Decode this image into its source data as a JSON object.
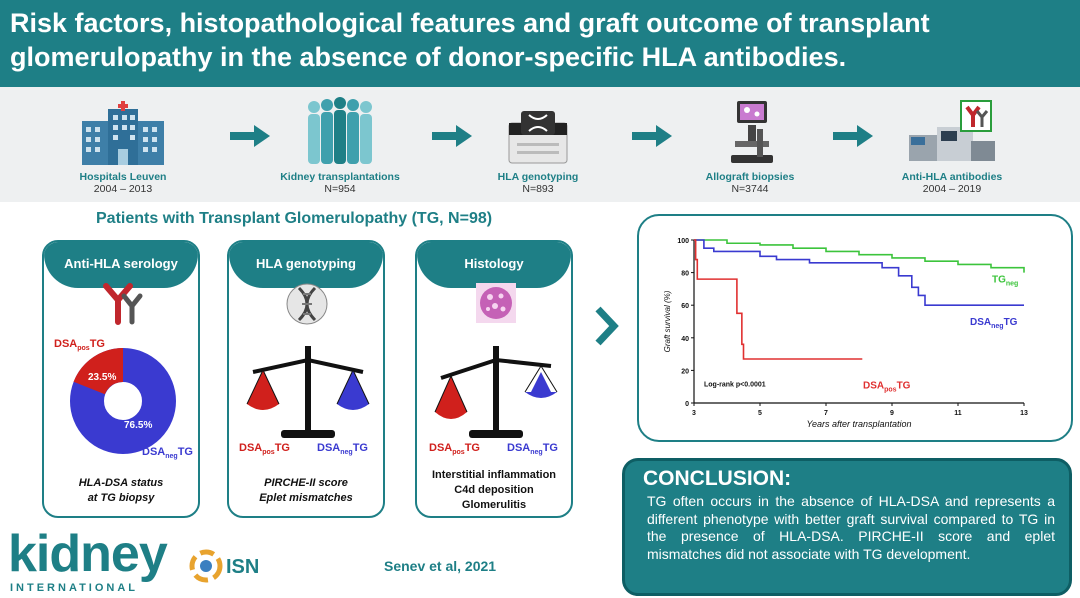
{
  "header": {
    "title": "Risk factors, histopathological features and graft outcome of transplant glomerulopathy in the absence of donor-specific HLA antibodies."
  },
  "workflow": [
    {
      "label": "Hospitals Leuven",
      "sub": "2004 – 2013",
      "icon": "hospital-icon"
    },
    {
      "label": "Kidney transplantations",
      "sub": "N=954",
      "icon": "people-icon"
    },
    {
      "label": "HLA genotyping",
      "sub": "N=893",
      "icon": "sequencer-icon"
    },
    {
      "label": "Allograft biopsies",
      "sub": "N=3744",
      "icon": "microscope-icon"
    },
    {
      "label": "Anti-HLA antibodies",
      "sub": "2004 – 2019",
      "icon": "analyzer-icon"
    }
  ],
  "section_title": "Patients with Transplant Glomerulopathy (TG, N=98)",
  "cards": {
    "serology": {
      "title": "Anti-HLA serology",
      "pos_pct": "23.5%",
      "neg_pct": "76.5%",
      "footer1": "HLA-DSA status",
      "footer2": "at TG biopsy"
    },
    "genotyping": {
      "title": "HLA genotyping",
      "footer1": "PIRCHE-II score",
      "footer2": "Eplet mismatches"
    },
    "histology": {
      "title": "Histology",
      "footer1": "Interstitial inflammation",
      "footer2": "C4d deposition",
      "footer3": "Glomerulitis"
    }
  },
  "labels": {
    "dsa": "DSA",
    "pos": "pos",
    "neg": "neg",
    "tg": "TG"
  },
  "chart_data": {
    "type": "line",
    "xlabel": "Years after transplantation",
    "ylabel": "Graft survival (%)",
    "xlim": [
      3,
      13
    ],
    "ylim": [
      0,
      100
    ],
    "xticks": [
      3,
      5,
      7,
      9,
      11,
      13
    ],
    "yticks": [
      0,
      20,
      40,
      60,
      80,
      100
    ],
    "annotation": "Log-rank p<0.0001",
    "series": [
      {
        "name": "TG",
        "sub": "neg",
        "color": "#3cc43c",
        "x": [
          3,
          4,
          5,
          6,
          7,
          8,
          9,
          10,
          11,
          12,
          13
        ],
        "y": [
          100,
          98,
          97,
          95,
          93,
          91,
          89,
          87,
          85,
          83,
          80
        ]
      },
      {
        "name": "DSA neg TG",
        "color": "#3a3ad0",
        "x": [
          3,
          3.3,
          3.6,
          4,
          5,
          5.5,
          6,
          6.5,
          7,
          8,
          8.7,
          9.2,
          9.6,
          9.8,
          10,
          11,
          12,
          13
        ],
        "y": [
          100,
          95,
          93,
          93,
          90,
          88,
          88,
          86,
          86,
          86,
          83,
          78,
          71,
          66,
          60,
          60,
          60,
          60
        ]
      },
      {
        "name": "DSA pos TG",
        "color": "#e03030",
        "x": [
          3,
          3.05,
          3.1,
          3.3,
          4.2,
          4.3,
          4.45,
          4.5,
          8.1
        ],
        "y": [
          100,
          88,
          76,
          76,
          76,
          55,
          36,
          27,
          27
        ]
      }
    ]
  },
  "conclusion": {
    "heading": "CONCLUSION:",
    "text": "TG often occurs in the absence of HLA-DSA and represents a different phenotype with better graft survival compared to TG in the presence of HLA-DSA. PIRCHE-II score and eplet mismatches did not associate with TG development."
  },
  "footer": {
    "logo": "kidney",
    "logo_sub": "INTERNATIONAL",
    "isn": "ISN",
    "citation": "Senev et al, 2021"
  },
  "colors": {
    "teal": "#1e7f86",
    "pos_red": "#d0201c",
    "neg_blue": "#3a3ad0",
    "neg_green": "#3cc43c"
  }
}
